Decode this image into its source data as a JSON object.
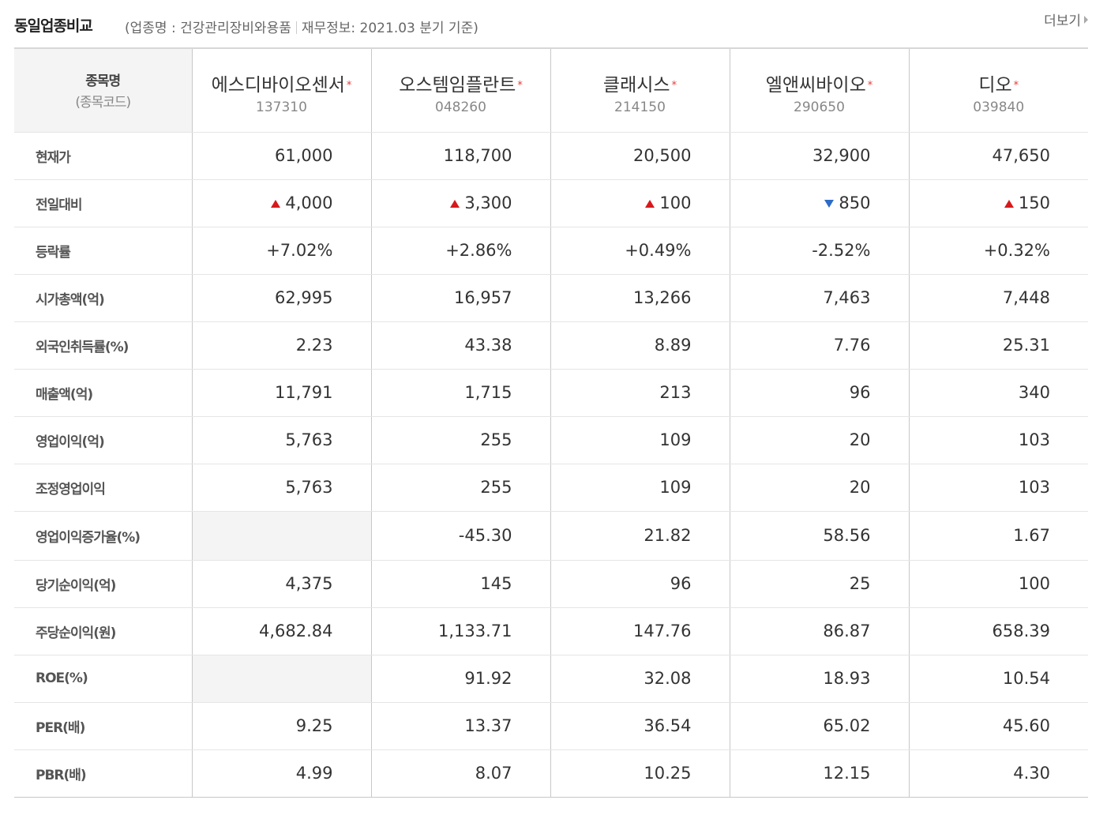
{
  "header": {
    "title": "동일업종비교",
    "industry": "(업종명 : 건강관리장비와용품",
    "finance_basis": "재무정보: 2021.03 분기 기준)",
    "more_label": "더보기"
  },
  "table": {
    "label_header": {
      "line1": "종목명",
      "line2": "(종목코드)"
    },
    "star": "*",
    "stocks": [
      {
        "name": "에스디바이오센서",
        "code": "137310"
      },
      {
        "name": "오스템임플란트",
        "code": "048260"
      },
      {
        "name": "클래시스",
        "code": "214150"
      },
      {
        "name": "엘앤씨바이오",
        "code": "290650"
      },
      {
        "name": "디오",
        "code": "039840"
      }
    ],
    "rows": [
      {
        "label": "현재가",
        "cells": [
          {
            "text": "61,000"
          },
          {
            "text": "118,700"
          },
          {
            "text": "20,500"
          },
          {
            "text": "32,900"
          },
          {
            "text": "47,650"
          }
        ]
      },
      {
        "label": "전일대비",
        "cells": [
          {
            "text": "4,000",
            "dir": "up"
          },
          {
            "text": "3,300",
            "dir": "up"
          },
          {
            "text": "100",
            "dir": "up"
          },
          {
            "text": "850",
            "dir": "down"
          },
          {
            "text": "150",
            "dir": "up"
          }
        ]
      },
      {
        "label": "등락률",
        "cells": [
          {
            "text": "+7.02%",
            "tone": "up"
          },
          {
            "text": "+2.86%",
            "tone": "up"
          },
          {
            "text": "+0.49%",
            "tone": "up"
          },
          {
            "text": "-2.52%",
            "tone": "down"
          },
          {
            "text": "+0.32%",
            "tone": "up"
          }
        ]
      },
      {
        "label": "시가총액(억)",
        "cells": [
          {
            "text": "62,995"
          },
          {
            "text": "16,957"
          },
          {
            "text": "13,266"
          },
          {
            "text": "7,463"
          },
          {
            "text": "7,448"
          }
        ]
      },
      {
        "label": "외국인취득률(%)",
        "cells": [
          {
            "text": "2.23"
          },
          {
            "text": "43.38"
          },
          {
            "text": "8.89"
          },
          {
            "text": "7.76"
          },
          {
            "text": "25.31"
          }
        ]
      },
      {
        "label": "매출액(억)",
        "cells": [
          {
            "text": "11,791"
          },
          {
            "text": "1,715"
          },
          {
            "text": "213"
          },
          {
            "text": "96"
          },
          {
            "text": "340"
          }
        ]
      },
      {
        "label": "영업이익(억)",
        "cells": [
          {
            "text": "5,763"
          },
          {
            "text": "255"
          },
          {
            "text": "109"
          },
          {
            "text": "20"
          },
          {
            "text": "103"
          }
        ]
      },
      {
        "label": "조정영업이익",
        "cells": [
          {
            "text": "5,763"
          },
          {
            "text": "255"
          },
          {
            "text": "109"
          },
          {
            "text": "20"
          },
          {
            "text": "103"
          }
        ]
      },
      {
        "label": "영업이익증가율(%)",
        "tall": true,
        "cells": [
          {
            "text": "",
            "blank": true
          },
          {
            "text": "-45.30"
          },
          {
            "text": "21.82"
          },
          {
            "text": "58.56"
          },
          {
            "text": "1.67"
          }
        ]
      },
      {
        "label": "당기순이익(억)",
        "cells": [
          {
            "text": "4,375"
          },
          {
            "text": "145"
          },
          {
            "text": "96"
          },
          {
            "text": "25"
          },
          {
            "text": "100"
          }
        ]
      },
      {
        "label": "주당순이익(원)",
        "cells": [
          {
            "text": "4,682.84"
          },
          {
            "text": "1,133.71"
          },
          {
            "text": "147.76"
          },
          {
            "text": "86.87"
          },
          {
            "text": "658.39"
          }
        ]
      },
      {
        "label": "ROE(%)",
        "cells": [
          {
            "text": "",
            "blank": true
          },
          {
            "text": "91.92"
          },
          {
            "text": "32.08"
          },
          {
            "text": "18.93"
          },
          {
            "text": "10.54"
          }
        ]
      },
      {
        "label": "PER(배)",
        "cells": [
          {
            "text": "9.25"
          },
          {
            "text": "13.37"
          },
          {
            "text": "36.54"
          },
          {
            "text": "65.02"
          },
          {
            "text": "45.60"
          }
        ]
      },
      {
        "label": "PBR(배)",
        "cells": [
          {
            "text": "4.99"
          },
          {
            "text": "8.07"
          },
          {
            "text": "10.25"
          },
          {
            "text": "12.15"
          },
          {
            "text": "4.30"
          }
        ]
      }
    ]
  },
  "colors": {
    "up": "#d7191c",
    "down": "#2f6bc8",
    "header_bg": "#f4f4f4",
    "star": "#e23b3b"
  }
}
